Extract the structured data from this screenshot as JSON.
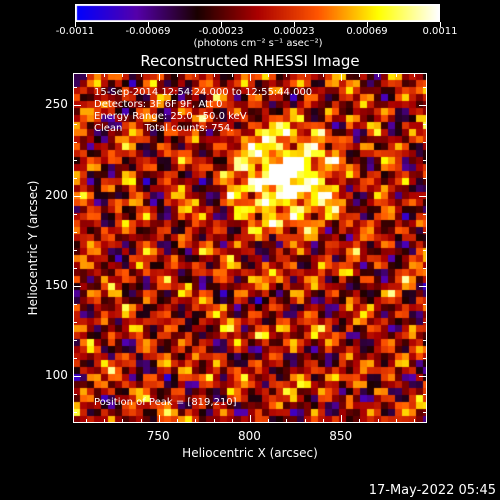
{
  "colorbar": {
    "tick_labels": [
      "-0.0011",
      "-0.00069",
      "-0.00023",
      "0.00023",
      "0.00069",
      "0.0011"
    ],
    "unit_label": "(photons cm⁻² s⁻¹ asec⁻²)",
    "colors": [
      "#0000ff",
      "#5500aa",
      "#1a0000",
      "#aa0000",
      "#ff5500",
      "#ffff00",
      "#ffffff"
    ]
  },
  "chart_data": {
    "type": "heatmap",
    "title": "Reconstructed RHESSI Image",
    "xlabel": "Heliocentric X (arcsec)",
    "ylabel": "Heliocentric Y (arcsec)",
    "xlim": [
      703,
      897
    ],
    "ylim": [
      74,
      268
    ],
    "xticks": [
      750,
      800,
      850
    ],
    "yticks": [
      100,
      150,
      200,
      250
    ],
    "value_range": [
      -0.0011,
      0.0011
    ],
    "peak": [
      819,
      210
    ],
    "annotations": {
      "time_range": "15-Sep-2014 12:54:24.000 to 12:55:44.000",
      "detectors": "Detectors: 3F 6F 9F, Att 0",
      "energy": "Energy Range: 25.0 - 50.0 keV",
      "clean": "Clean       Total counts: 754.",
      "peak_label": "Position of Peak = [819,210]"
    }
  },
  "timestamp": "17-May-2022 05:45"
}
